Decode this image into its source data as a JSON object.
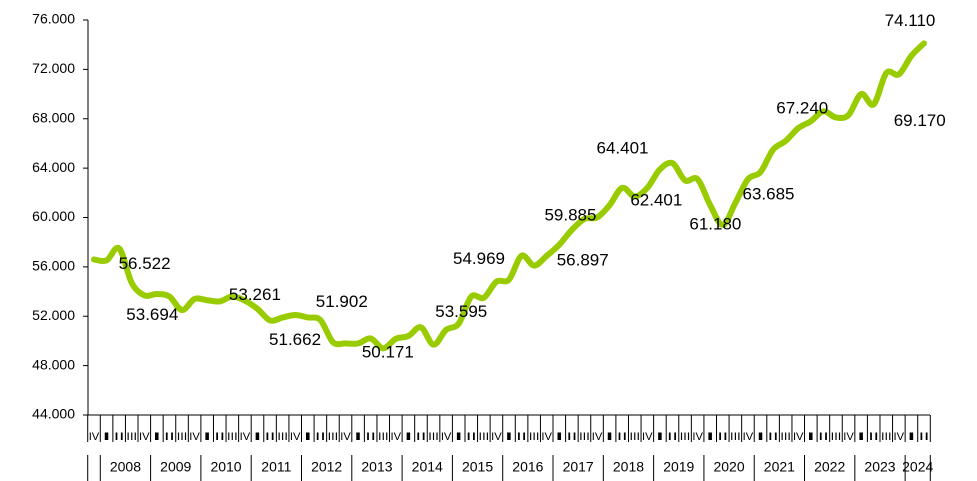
{
  "chart_data": {
    "type": "line",
    "categories": [
      "IV",
      "I",
      "II",
      "III",
      "IV",
      "I",
      "II",
      "III",
      "IV",
      "I",
      "II",
      "III",
      "IV",
      "I",
      "II",
      "III",
      "IV",
      "I",
      "II",
      "III",
      "IV",
      "I",
      "II",
      "III",
      "IV",
      "I",
      "II",
      "III",
      "IV",
      "I",
      "II",
      "III",
      "IV",
      "I",
      "II",
      "III",
      "IV",
      "I",
      "II",
      "III",
      "IV",
      "I",
      "II",
      "III",
      "IV",
      "I",
      "II",
      "III",
      "IV",
      "I",
      "II",
      "III",
      "IV",
      "I",
      "II",
      "III",
      "IV",
      "I",
      "II",
      "III",
      "IV",
      "I",
      "II",
      "III",
      "IV",
      "I",
      "II"
    ],
    "years": [
      "2008",
      "2009",
      "2010",
      "2011",
      "2012",
      "2013",
      "2014",
      "2015",
      "2016",
      "2017",
      "2018",
      "2019",
      "2020",
      "2021",
      "2022",
      "2023",
      "2024"
    ],
    "series": [
      {
        "color": "#99cc00",
        "values": [
          56600,
          56522,
          57500,
          54700,
          53694,
          53800,
          53600,
          52500,
          53400,
          53300,
          53200,
          53600,
          53261,
          52600,
          51662,
          51900,
          52100,
          51902,
          51700,
          49900,
          49800,
          49800,
          50200,
          49400,
          50171,
          50400,
          51100,
          49700,
          50900,
          51400,
          53595,
          53500,
          54800,
          54969,
          56900,
          56100,
          56897,
          57800,
          59000,
          59885,
          60000,
          61000,
          62400,
          61700,
          62401,
          63900,
          64401,
          63000,
          63100,
          61000,
          59400,
          61180,
          63100,
          63685,
          65500,
          66200,
          67240,
          67800,
          68600,
          68100,
          68300,
          70000,
          69170,
          71700,
          71600,
          73100,
          74110
        ],
        "value_labels": [
          null,
          "56.522",
          null,
          null,
          "53.694",
          null,
          null,
          null,
          null,
          null,
          null,
          null,
          "53.261",
          null,
          "51.662",
          null,
          null,
          "51.902",
          null,
          null,
          null,
          null,
          null,
          null,
          "50.171",
          null,
          null,
          null,
          null,
          null,
          "53.595",
          null,
          null,
          "54.969",
          null,
          null,
          "56.897",
          null,
          null,
          "59.885",
          null,
          null,
          null,
          null,
          "62.401",
          null,
          "64.401",
          null,
          null,
          null,
          null,
          "61.180",
          null,
          "63.685",
          null,
          null,
          "67.240",
          null,
          null,
          null,
          null,
          null,
          "69.170",
          null,
          null,
          null,
          "74.110"
        ]
      }
    ],
    "ylim": [
      44000,
      76000
    ],
    "yticks": [
      {
        "value": 44000,
        "label": "44.000"
      },
      {
        "value": 48000,
        "label": "48.000"
      },
      {
        "value": 52000,
        "label": "52.000"
      },
      {
        "value": 56000,
        "label": "56.000"
      },
      {
        "value": 60000,
        "label": "60.000"
      },
      {
        "value": 64000,
        "label": "64.000"
      },
      {
        "value": 68000,
        "label": "68.000"
      },
      {
        "value": 72000,
        "label": "72.000"
      },
      {
        "value": 76000,
        "label": "76.000"
      }
    ],
    "grid": false
  }
}
